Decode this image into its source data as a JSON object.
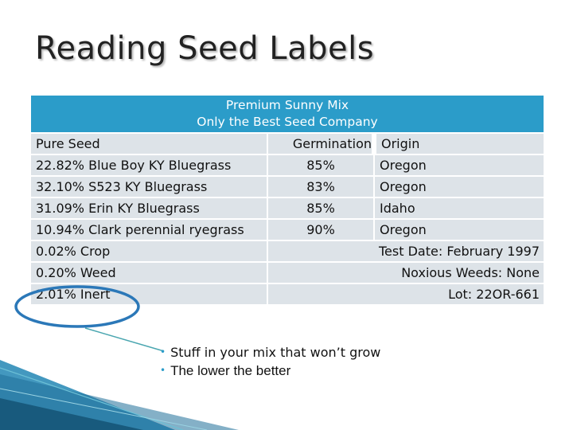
{
  "title": "Reading Seed Labels",
  "table": {
    "header_line1": "Premium Sunny Mix",
    "header_line2": "Only the Best Seed Company",
    "columns": {
      "pure_seed": "Pure Seed",
      "germination": "Germination",
      "origin": "Origin"
    },
    "rows": [
      {
        "seed": "22.82% Blue Boy KY Bluegrass",
        "germination": "85%",
        "origin": "Oregon"
      },
      {
        "seed": "32.10% S523 KY Bluegrass",
        "germination": "83%",
        "origin": "Oregon"
      },
      {
        "seed": "31.09% Erin KY Bluegrass",
        "germination": "85%",
        "origin": "Idaho"
      },
      {
        "seed": "10.94% Clark perennial ryegrass",
        "germination": "90%",
        "origin": "Oregon"
      }
    ],
    "footer_rows": [
      {
        "left": "0.02% Crop",
        "right": "Test Date: February 1997"
      },
      {
        "left": "0.20% Weed",
        "right": "Noxious Weeds: None"
      },
      {
        "left": "2.01% Inert",
        "right": "Lot: 22OR-661"
      }
    ]
  },
  "callout": {
    "bullet1": "Stuff in your mix that won’t grow",
    "bullet2": "The lower the better"
  },
  "colors": {
    "header_bg": "#2b9cc9",
    "cell_bg": "#dde3e8",
    "highlight_ellipse": "#2b78b8",
    "pointer_line": "#4aa6b0"
  }
}
